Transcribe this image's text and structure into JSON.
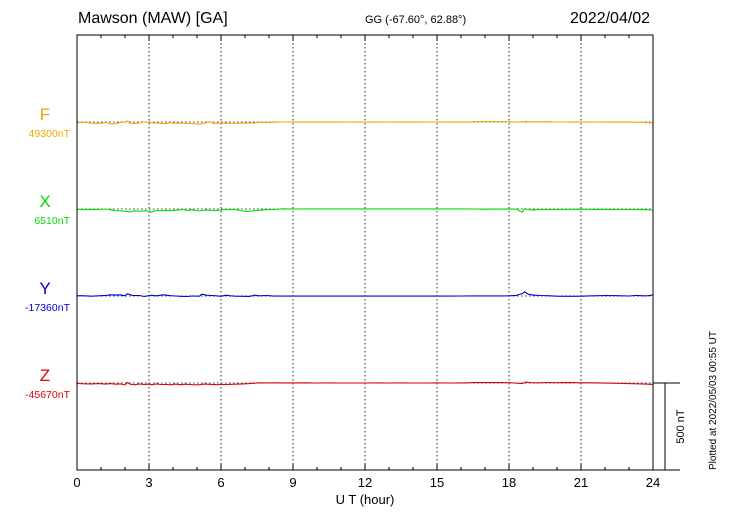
{
  "header": {
    "title": "Mawson (MAW)  [GA]",
    "coords": "GG (-67.60°,  62.88°)",
    "date": "2022/04/02"
  },
  "footer": {
    "plotted": "Plotted at 2022/05/03 00:55 UT"
  },
  "chart_data": {
    "type": "line",
    "xlabel": "U T (hour)",
    "xlim": [
      0,
      24
    ],
    "x_ticks": [
      "0",
      "3",
      "6",
      "9",
      "12",
      "15",
      "18",
      "21",
      "24"
    ],
    "grid": true,
    "scale_bar_label": "500 nT",
    "scale_bar_nT": 500,
    "series": [
      {
        "name": "F",
        "baseline_label": "49300nT",
        "color": "#f0a800",
        "points": [
          [
            0,
            -28
          ],
          [
            0.3,
            -5
          ],
          [
            0.6,
            -38
          ],
          [
            0.9,
            -45
          ],
          [
            1.2,
            -12
          ],
          [
            1.4,
            -68
          ],
          [
            1.6,
            -55
          ],
          [
            1.8,
            -20
          ],
          [
            2.0,
            0
          ],
          [
            2.1,
            35
          ],
          [
            2.2,
            -35
          ],
          [
            2.4,
            -45
          ],
          [
            2.6,
            -30
          ],
          [
            2.8,
            5
          ],
          [
            3.1,
            -25
          ],
          [
            3.4,
            -35
          ],
          [
            3.6,
            -55
          ],
          [
            3.8,
            -40
          ],
          [
            3.9,
            -10
          ],
          [
            4.0,
            -40
          ],
          [
            4.3,
            -35
          ],
          [
            4.6,
            -50
          ],
          [
            4.9,
            -55
          ],
          [
            5.1,
            -70
          ],
          [
            5.3,
            -40
          ],
          [
            5.5,
            5
          ],
          [
            5.7,
            -45
          ],
          [
            5.9,
            -40
          ],
          [
            6.2,
            -35
          ],
          [
            6.5,
            -50
          ],
          [
            6.8,
            -40
          ],
          [
            7.1,
            -35
          ],
          [
            7.4,
            -30
          ],
          [
            7.6,
            -8
          ],
          [
            7.8,
            -15
          ],
          [
            8.0,
            -12
          ],
          [
            8.5,
            0
          ],
          [
            9.0,
            3
          ],
          [
            9.3,
            -2
          ],
          [
            9.8,
            -3
          ],
          [
            10.3,
            -3
          ],
          [
            10.8,
            -3
          ],
          [
            11.3,
            0
          ],
          [
            11.8,
            -2
          ],
          [
            12.3,
            -2
          ],
          [
            12.8,
            -1
          ],
          [
            13.3,
            -2
          ],
          [
            13.8,
            -2
          ],
          [
            14.3,
            -2
          ],
          [
            14.8,
            -1
          ],
          [
            15.3,
            -2
          ],
          [
            15.8,
            -2
          ],
          [
            16.3,
            -3
          ],
          [
            16.5,
            10
          ],
          [
            16.8,
            14
          ],
          [
            17.3,
            15
          ],
          [
            17.8,
            17
          ],
          [
            18.2,
            0
          ],
          [
            18.4,
            -3
          ],
          [
            18.55,
            5
          ],
          [
            18.7,
            15
          ],
          [
            18.9,
            8
          ],
          [
            19.1,
            6
          ],
          [
            19.3,
            5
          ],
          [
            19.6,
            10
          ],
          [
            20.0,
            0
          ],
          [
            20.4,
            0
          ],
          [
            20.8,
            5
          ],
          [
            21.2,
            -2
          ],
          [
            21.6,
            0
          ],
          [
            22.0,
            -3
          ],
          [
            22.4,
            -5
          ],
          [
            22.8,
            -2
          ],
          [
            23.2,
            -5
          ],
          [
            23.6,
            -10
          ],
          [
            23.8,
            -28
          ],
          [
            24,
            -22
          ]
        ]
      },
      {
        "name": "X",
        "baseline_label": "6510nT",
        "color": "#00dd00",
        "points": [
          [
            0,
            -10
          ],
          [
            0.3,
            -20
          ],
          [
            0.6,
            -10
          ],
          [
            0.9,
            -18
          ],
          [
            1.2,
            0
          ],
          [
            1.4,
            -28
          ],
          [
            1.6,
            -55
          ],
          [
            1.8,
            -60
          ],
          [
            2.0,
            -75
          ],
          [
            2.2,
            -100
          ],
          [
            2.4,
            -55
          ],
          [
            2.6,
            -75
          ],
          [
            2.8,
            -60
          ],
          [
            3.0,
            -65
          ],
          [
            3.1,
            -110
          ],
          [
            3.3,
            -50
          ],
          [
            3.5,
            -60
          ],
          [
            3.7,
            -45
          ],
          [
            3.9,
            -55
          ],
          [
            4.1,
            -40
          ],
          [
            4.4,
            -15
          ],
          [
            4.6,
            -45
          ],
          [
            4.8,
            -25
          ],
          [
            5.1,
            -65
          ],
          [
            5.4,
            -30
          ],
          [
            5.6,
            -50
          ],
          [
            5.8,
            -45
          ],
          [
            6.0,
            -35
          ],
          [
            6.2,
            -20
          ],
          [
            6.5,
            -15
          ],
          [
            6.7,
            -25
          ],
          [
            6.9,
            -70
          ],
          [
            7.1,
            -75
          ],
          [
            7.3,
            -70
          ],
          [
            7.5,
            -45
          ],
          [
            7.8,
            -28
          ],
          [
            8.2,
            -15
          ],
          [
            8.6,
            5
          ],
          [
            9.0,
            0
          ],
          [
            9.5,
            3
          ],
          [
            10.0,
            2
          ],
          [
            10.5,
            3
          ],
          [
            11.0,
            2
          ],
          [
            11.5,
            3
          ],
          [
            12.0,
            2
          ],
          [
            12.5,
            3
          ],
          [
            13.0,
            2
          ],
          [
            13.5,
            3
          ],
          [
            14.0,
            2
          ],
          [
            14.5,
            3
          ],
          [
            15.0,
            4
          ],
          [
            15.5,
            3
          ],
          [
            16.0,
            2
          ],
          [
            16.5,
            0
          ],
          [
            17.0,
            -5
          ],
          [
            17.5,
            -2
          ],
          [
            18.0,
            -3
          ],
          [
            18.3,
            0
          ],
          [
            18.55,
            -110
          ],
          [
            18.65,
            15
          ],
          [
            18.75,
            -10
          ],
          [
            19.0,
            -30
          ],
          [
            19.3,
            -15
          ],
          [
            19.6,
            -20
          ],
          [
            20.0,
            -15
          ],
          [
            20.5,
            -10
          ],
          [
            21.0,
            -8
          ],
          [
            21.5,
            -12
          ],
          [
            22.0,
            -10
          ],
          [
            22.5,
            -15
          ],
          [
            23.0,
            -18
          ],
          [
            23.5,
            -20
          ],
          [
            23.8,
            -25
          ],
          [
            24,
            -32
          ]
        ]
      },
      {
        "name": "Y",
        "baseline_label": "-17360nT",
        "color": "#0000dd",
        "points": [
          [
            0,
            10
          ],
          [
            0.3,
            5
          ],
          [
            0.6,
            -5
          ],
          [
            0.9,
            5
          ],
          [
            1.2,
            20
          ],
          [
            1.4,
            40
          ],
          [
            1.6,
            30
          ],
          [
            1.8,
            40
          ],
          [
            2.0,
            5
          ],
          [
            2.1,
            75
          ],
          [
            2.3,
            20
          ],
          [
            2.6,
            15
          ],
          [
            2.8,
            -15
          ],
          [
            3.1,
            25
          ],
          [
            3.3,
            5
          ],
          [
            3.6,
            40
          ],
          [
            3.9,
            10
          ],
          [
            4.1,
            0
          ],
          [
            4.3,
            -10
          ],
          [
            4.6,
            -15
          ],
          [
            4.8,
            0
          ],
          [
            5.1,
            -5
          ],
          [
            5.2,
            60
          ],
          [
            5.4,
            25
          ],
          [
            5.6,
            15
          ],
          [
            5.8,
            5
          ],
          [
            6.0,
            -10
          ],
          [
            6.2,
            25
          ],
          [
            6.4,
            5
          ],
          [
            6.6,
            -5
          ],
          [
            6.9,
            -10
          ],
          [
            7.2,
            -12
          ],
          [
            7.4,
            25
          ],
          [
            7.6,
            5
          ],
          [
            7.9,
            15
          ],
          [
            8.2,
            -3
          ],
          [
            8.6,
            -2
          ],
          [
            9.0,
            -3
          ],
          [
            9.5,
            -3
          ],
          [
            10.0,
            -2
          ],
          [
            10.5,
            -2
          ],
          [
            11.0,
            -3
          ],
          [
            11.5,
            -3
          ],
          [
            12.0,
            -3
          ],
          [
            12.5,
            -3
          ],
          [
            13.0,
            -2
          ],
          [
            13.5,
            -3
          ],
          [
            14.0,
            -4
          ],
          [
            14.5,
            -3
          ],
          [
            15.0,
            -2
          ],
          [
            15.5,
            -2
          ],
          [
            16.0,
            0
          ],
          [
            16.5,
            2
          ],
          [
            17.0,
            3
          ],
          [
            17.5,
            4
          ],
          [
            18.0,
            5
          ],
          [
            18.3,
            20
          ],
          [
            18.55,
            80
          ],
          [
            18.65,
            140
          ],
          [
            18.8,
            60
          ],
          [
            19.0,
            30
          ],
          [
            19.3,
            15
          ],
          [
            19.6,
            10
          ],
          [
            20.0,
            -5
          ],
          [
            20.5,
            -10
          ],
          [
            21.0,
            -5
          ],
          [
            21.5,
            5
          ],
          [
            22.0,
            15
          ],
          [
            22.5,
            10
          ],
          [
            23.0,
            0
          ],
          [
            23.3,
            20
          ],
          [
            23.6,
            5
          ],
          [
            23.8,
            10
          ],
          [
            24,
            35
          ]
        ]
      },
      {
        "name": "Z",
        "baseline_label": "-45670nT",
        "color": "#e00000",
        "points": [
          [
            0,
            -15
          ],
          [
            0.3,
            -25
          ],
          [
            0.6,
            -30
          ],
          [
            0.9,
            -20
          ],
          [
            1.2,
            -35
          ],
          [
            1.4,
            -20
          ],
          [
            1.6,
            -40
          ],
          [
            1.8,
            -30
          ],
          [
            2.0,
            -65
          ],
          [
            2.1,
            20
          ],
          [
            2.2,
            -35
          ],
          [
            2.4,
            -60
          ],
          [
            2.6,
            -30
          ],
          [
            2.8,
            -45
          ],
          [
            3.0,
            -40
          ],
          [
            3.1,
            -60
          ],
          [
            3.3,
            -30
          ],
          [
            3.5,
            -50
          ],
          [
            3.7,
            -45
          ],
          [
            3.9,
            -60
          ],
          [
            4.1,
            -35
          ],
          [
            4.3,
            -55
          ],
          [
            4.5,
            -40
          ],
          [
            4.7,
            -50
          ],
          [
            4.9,
            -60
          ],
          [
            5.1,
            -55
          ],
          [
            5.3,
            -35
          ],
          [
            5.6,
            -45
          ],
          [
            5.8,
            -55
          ],
          [
            6.0,
            -50
          ],
          [
            6.3,
            -45
          ],
          [
            6.6,
            -40
          ],
          [
            6.9,
            -30
          ],
          [
            7.2,
            -20
          ],
          [
            7.4,
            -5
          ],
          [
            7.6,
            5
          ],
          [
            7.8,
            3
          ],
          [
            8.2,
            5
          ],
          [
            8.6,
            2
          ],
          [
            9.0,
            3
          ],
          [
            9.5,
            5
          ],
          [
            10.0,
            0
          ],
          [
            10.5,
            2
          ],
          [
            11.0,
            0
          ],
          [
            11.5,
            1
          ],
          [
            12.0,
            1
          ],
          [
            12.5,
            2
          ],
          [
            13.0,
            1
          ],
          [
            13.5,
            2
          ],
          [
            14.0,
            1
          ],
          [
            14.5,
            1
          ],
          [
            15.0,
            2
          ],
          [
            15.5,
            1
          ],
          [
            16.0,
            2
          ],
          [
            16.3,
            5
          ],
          [
            16.6,
            12
          ],
          [
            17.0,
            13
          ],
          [
            17.5,
            12
          ],
          [
            18.0,
            10
          ],
          [
            18.2,
            0
          ],
          [
            18.4,
            -10
          ],
          [
            18.55,
            -20
          ],
          [
            18.7,
            30
          ],
          [
            18.9,
            10
          ],
          [
            19.1,
            5
          ],
          [
            19.3,
            8
          ],
          [
            19.6,
            15
          ],
          [
            20.0,
            10
          ],
          [
            20.5,
            12
          ],
          [
            21.0,
            8
          ],
          [
            21.5,
            5
          ],
          [
            22.0,
            -2
          ],
          [
            22.5,
            -10
          ],
          [
            23.0,
            -20
          ],
          [
            23.5,
            -30
          ],
          [
            23.8,
            -40
          ],
          [
            24,
            -45
          ]
        ]
      }
    ]
  }
}
